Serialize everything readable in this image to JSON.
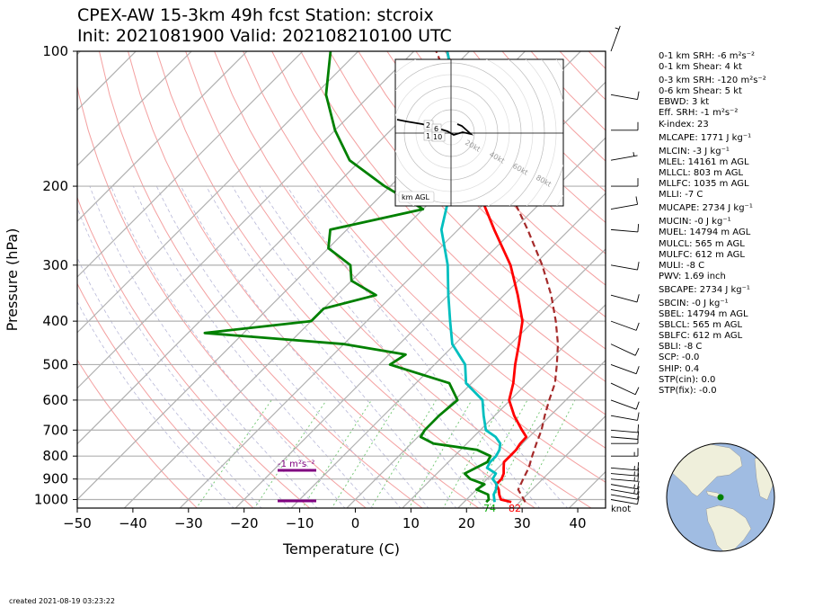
{
  "header": {
    "line1": "CPEX-AW 15-3km  49h fcst  Station: stcroix",
    "line2": "Init: 2021081900  Valid: 202108210100 UTC"
  },
  "chart_data": {
    "type": "line",
    "subtype": "skew-T log-P sounding",
    "xlabel": "Temperature (C)",
    "ylabel": "Pressure (hPa)",
    "xlim": [
      -50,
      45
    ],
    "ylim": [
      1050,
      100
    ],
    "y_scale": "log",
    "x_ticks": [
      "−50",
      "−40",
      "−30",
      "−20",
      "−10",
      "0",
      "10",
      "20",
      "30",
      "40"
    ],
    "y_ticks": [
      "100",
      "200",
      "300",
      "400",
      "500",
      "600",
      "700",
      "800",
      "900",
      "1000"
    ],
    "series": [
      {
        "color": "#ff0000",
        "points": [
          [
            1013,
            28.5
          ],
          [
            1000,
            26.2
          ],
          [
            975,
            25.0
          ],
          [
            950,
            24.0
          ],
          [
            925,
            22.6
          ],
          [
            900,
            22.6
          ],
          [
            875,
            22.0
          ],
          [
            850,
            21.0
          ],
          [
            825,
            20.0
          ],
          [
            800,
            20.0
          ],
          [
            775,
            20.0
          ],
          [
            750,
            19.6
          ],
          [
            725,
            19.5
          ],
          [
            700,
            17.5
          ],
          [
            650,
            13.5
          ],
          [
            600,
            9.8
          ],
          [
            550,
            7.5
          ],
          [
            500,
            4.5
          ],
          [
            450,
            1.5
          ],
          [
            400,
            -2.0
          ],
          [
            350,
            -7.5
          ],
          [
            300,
            -14.2
          ],
          [
            250,
            -23.5
          ],
          [
            200,
            -34.5
          ],
          [
            175,
            -41.0
          ],
          [
            150,
            -48.0
          ],
          [
            125,
            -55.0
          ],
          [
            110,
            -60.0
          ],
          [
            100,
            -64.0
          ]
        ]
      },
      {
        "color": "#00bfbf",
        "points": [
          [
            1013,
            25.5
          ],
          [
            1000,
            25.0
          ],
          [
            975,
            24.0
          ],
          [
            950,
            23.5
          ],
          [
            925,
            22.7
          ],
          [
            900,
            21.0
          ],
          [
            875,
            20.6
          ],
          [
            850,
            18.0
          ],
          [
            825,
            17.5
          ],
          [
            800,
            17.5
          ],
          [
            775,
            17.0
          ],
          [
            750,
            16.0
          ],
          [
            725,
            14.0
          ],
          [
            700,
            11.0
          ],
          [
            650,
            8.0
          ],
          [
            600,
            5.0
          ],
          [
            550,
            -1.0
          ],
          [
            500,
            -4.5
          ],
          [
            450,
            -10.5
          ],
          [
            400,
            -15.0
          ],
          [
            350,
            -20.0
          ],
          [
            300,
            -25.5
          ],
          [
            250,
            -33.0
          ],
          [
            200,
            -39.0
          ],
          [
            175,
            -44.0
          ],
          [
            150,
            -51.0
          ],
          [
            125,
            -57.0
          ],
          [
            110,
            -60.0
          ],
          [
            100,
            -64.0
          ]
        ]
      },
      {
        "color": "#008000",
        "points": [
          [
            1013,
            24.0
          ],
          [
            1000,
            24.0
          ],
          [
            975,
            23.0
          ],
          [
            950,
            20.0
          ],
          [
            925,
            20.5
          ],
          [
            900,
            17.0
          ],
          [
            875,
            15.0
          ],
          [
            850,
            16.0
          ],
          [
            825,
            17.0
          ],
          [
            800,
            16.5
          ],
          [
            775,
            13.0
          ],
          [
            750,
            4.0
          ],
          [
            725,
            0.5
          ],
          [
            700,
            0.0
          ],
          [
            650,
            0.0
          ],
          [
            600,
            0.5
          ],
          [
            550,
            -4.0
          ],
          [
            500,
            -18.0
          ],
          [
            475,
            -17.0
          ],
          [
            450,
            -30.0
          ],
          [
            425,
            -57.0
          ],
          [
            400,
            -40.0
          ],
          [
            375,
            -40.0
          ],
          [
            350,
            -33.0
          ],
          [
            325,
            -40.0
          ],
          [
            300,
            -43.0
          ],
          [
            275,
            -50.0
          ],
          [
            250,
            -53.0
          ],
          [
            225,
            -40.0
          ],
          [
            200,
            -51.0
          ],
          [
            175,
            -62.0
          ],
          [
            150,
            -70.0
          ],
          [
            125,
            -78.0
          ],
          [
            100,
            -85.0
          ]
        ]
      },
      {
        "color": "#a52a2a",
        "style": "dashed",
        "points": [
          [
            1013,
            31.0
          ],
          [
            950,
            27.5
          ],
          [
            900,
            26.5
          ],
          [
            850,
            25.5
          ],
          [
            800,
            24.0
          ],
          [
            750,
            22.5
          ],
          [
            700,
            21.0
          ],
          [
            650,
            19.0
          ],
          [
            600,
            17.0
          ],
          [
            550,
            15.0
          ],
          [
            500,
            12.0
          ],
          [
            450,
            8.5
          ],
          [
            400,
            4.0
          ],
          [
            350,
            -1.5
          ],
          [
            300,
            -8.5
          ],
          [
            250,
            -17.5
          ],
          [
            200,
            -29.0
          ],
          [
            175,
            -36.5
          ],
          [
            150,
            -45.0
          ],
          [
            125,
            -55.0
          ],
          [
            100,
            -66.0
          ]
        ]
      }
    ],
    "surface_labels": {
      "dewpoint": "74",
      "temperature": "82"
    },
    "srh_label": "-1 m²s⁻²",
    "barb_unit": "knot",
    "wind_profile_kt": [
      {
        "p": 1000,
        "spd": 12,
        "dir": 100
      },
      {
        "p": 975,
        "spd": 13,
        "dir": 100
      },
      {
        "p": 950,
        "spd": 15,
        "dir": 100
      },
      {
        "p": 925,
        "spd": 15,
        "dir": 100
      },
      {
        "p": 900,
        "spd": 15,
        "dir": 95
      },
      {
        "p": 875,
        "spd": 15,
        "dir": 95
      },
      {
        "p": 850,
        "spd": 15,
        "dir": 95
      },
      {
        "p": 800,
        "spd": 15,
        "dir": 90
      },
      {
        "p": 750,
        "spd": 10,
        "dir": 90
      },
      {
        "p": 725,
        "spd": 10,
        "dir": 95
      },
      {
        "p": 700,
        "spd": 10,
        "dir": 95
      },
      {
        "p": 650,
        "spd": 10,
        "dir": 100
      },
      {
        "p": 600,
        "spd": 10,
        "dir": 110
      },
      {
        "p": 550,
        "spd": 10,
        "dir": 115
      },
      {
        "p": 500,
        "spd": 10,
        "dir": 110
      },
      {
        "p": 450,
        "spd": 10,
        "dir": 115
      },
      {
        "p": 400,
        "spd": 10,
        "dir": 110
      },
      {
        "p": 350,
        "spd": 10,
        "dir": 105
      },
      {
        "p": 300,
        "spd": 10,
        "dir": 100
      },
      {
        "p": 250,
        "spd": 10,
        "dir": 95
      },
      {
        "p": 225,
        "spd": 10,
        "dir": 80
      },
      {
        "p": 200,
        "spd": 10,
        "dir": 90
      },
      {
        "p": 175,
        "spd": 5,
        "dir": 80
      },
      {
        "p": 150,
        "spd": 10,
        "dir": 90
      },
      {
        "p": 125,
        "spd": 10,
        "dir": 100
      },
      {
        "p": 100,
        "spd": 5,
        "dir": 20
      }
    ],
    "hodograph": {
      "label": "km AGL",
      "ring_labels": [
        "20kt",
        "40kt",
        "60kt",
        "80kt"
      ],
      "height_labels": [
        "2",
        "1",
        "6",
        "10"
      ]
    }
  },
  "stats": [
    "0-1 km SRH: -6 m²s⁻²",
    "0-1 km Shear: 4 kt",
    "0-3 km SRH: -120 m²s⁻²",
    "0-6 km Shear: 5 kt",
    "EBWD: 3 kt",
    "Eff. SRH: -1 m²s⁻²",
    "K-index: 23",
    "MLCAPE: 1771 J kg⁻¹",
    "MLCIN: -3 J kg⁻¹",
    "MLEL: 14161 m AGL",
    "MLLCL: 803 m AGL",
    "MLLFC: 1035 m AGL",
    "MLLI: -7 C",
    "MUCAPE: 2734 J kg⁻¹",
    "MUCIN: -0 J kg⁻¹",
    "MUEL: 14794 m AGL",
    "MULCL: 565 m AGL",
    "MULFC: 612 m AGL",
    "MULI: -8 C",
    "PWV: 1.69 inch",
    "SBCAPE: 2734 J kg⁻¹",
    "SBCIN: -0 J kg⁻¹",
    "SBEL: 14794 m AGL",
    "SBLCL: 565 m AGL",
    "SBLFC: 612 m AGL",
    "SBLI: -8 C",
    "SCP: -0.0",
    "SHIP: 0.4",
    "STP(cin): 0.0",
    "STP(fix): -0.0"
  ],
  "footer": "created 2021-08-19 03:23:22",
  "colors": {
    "temperature": "#ff0000",
    "dewpoint": "#008000",
    "wetbulb": "#00bfbf",
    "parcel": "#a52a2a",
    "srh": "#800080",
    "ocean": "#a0bce2",
    "land": "#efefdb"
  }
}
